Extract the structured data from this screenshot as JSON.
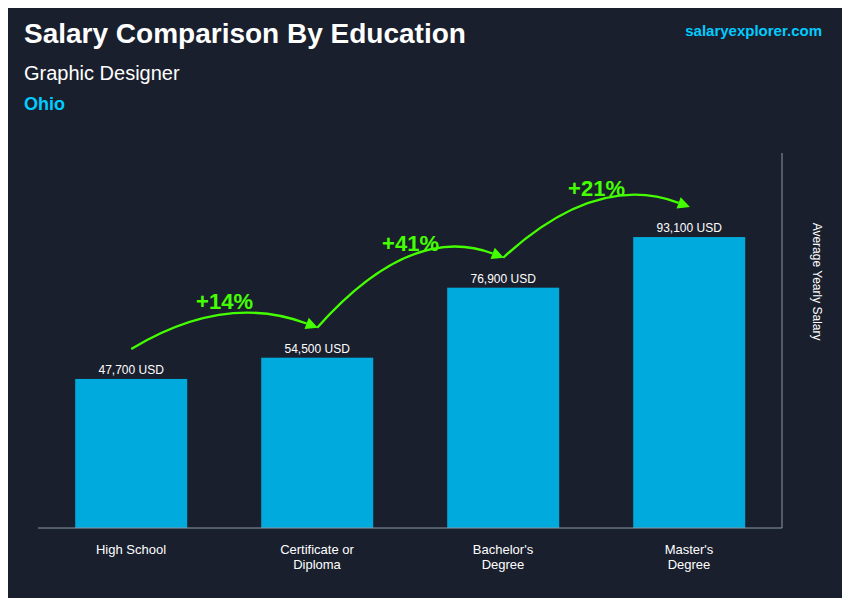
{
  "chart_data": {
    "type": "bar",
    "title": "Salary Comparison By Education",
    "subtitle": "Graphic Designer",
    "annotations": [
      {
        "text": "Ohio"
      },
      {
        "text": "salaryexplorer.com"
      },
      {
        "text": "+14%",
        "between": [
          "High School",
          "Certificate or\nDiploma"
        ],
        "color": "#44ff00"
      },
      {
        "text": "+41%",
        "between": [
          "Certificate or\nDiploma",
          "Bachelor's\nDegree"
        ],
        "color": "#44ff00"
      },
      {
        "text": "+21%",
        "between": [
          "Bachelor's\nDegree",
          "Master's\nDegree"
        ],
        "color": "#44ff00"
      }
    ],
    "y_label": "Average Yearly Salary",
    "categories": [
      "High School",
      "Certificate or\nDiploma",
      "Bachelor's\nDegree",
      "Master's\nDegree"
    ],
    "values": [
      47700,
      54500,
      76900,
      93100
    ],
    "value_labels": [
      "47,700 USD",
      "54,500 USD",
      "76,900 USD",
      "93,100 USD"
    ],
    "data_labels": true,
    "color": "#00aadd",
    "ylim": [
      0,
      120000
    ],
    "tick_labels": "x",
    "grid": false
  }
}
